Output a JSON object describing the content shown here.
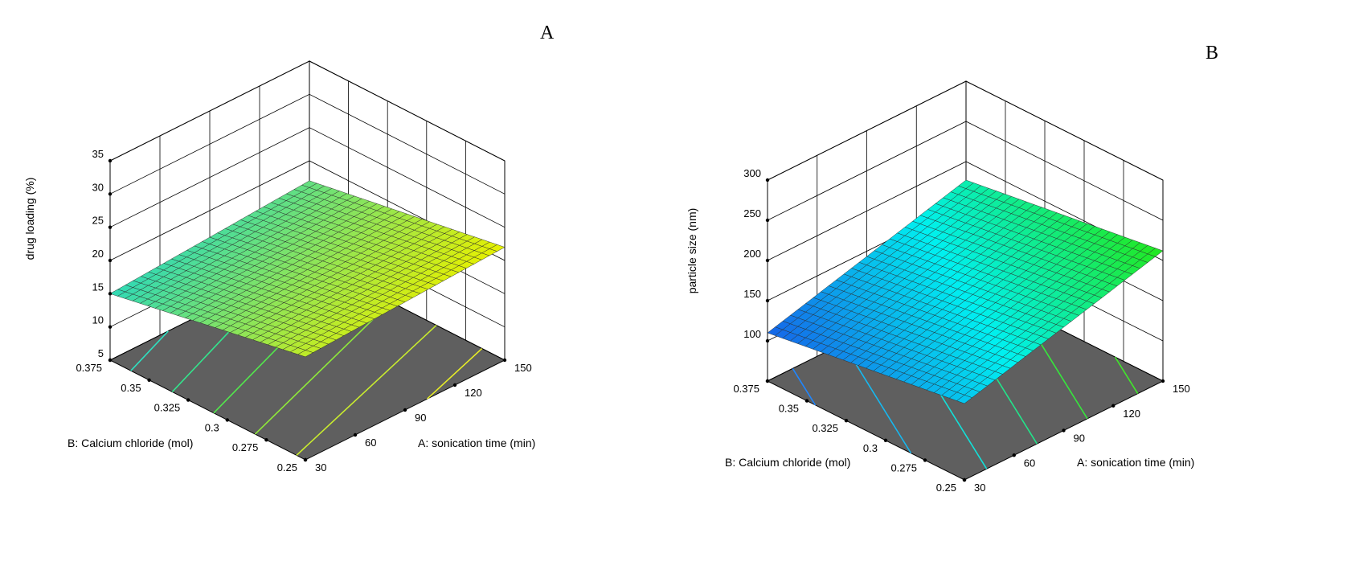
{
  "chart_data": [
    {
      "type": "surface3d",
      "panel_label": "A",
      "x": {
        "label": "A: sonication time (min)",
        "ticks": [
          30,
          60,
          90,
          120,
          150
        ],
        "range": [
          30,
          150
        ]
      },
      "y": {
        "label": "B: Calcium chloride (mol)",
        "ticks": [
          0.25,
          0.275,
          0.3,
          0.325,
          0.35,
          0.375
        ],
        "range": [
          0.25,
          0.375
        ]
      },
      "z": {
        "label": "drug loading (%)",
        "ticks": [
          5,
          10,
          15,
          20,
          25,
          30,
          35
        ],
        "range": [
          5,
          35
        ],
        "tick_labels_shown": [
          5,
          10,
          15,
          20,
          25,
          30,
          35
        ]
      },
      "surface_corners": {
        "x30_y0.25": 20.5,
        "x150_y0.25": 22.0,
        "x30_y0.375": 15.0,
        "x150_y0.375": 17.0
      },
      "colors": {
        "low": "#2fd9b6",
        "high": "#e6f000"
      },
      "contour_colors": [
        "#2ee0c0",
        "#33e58d",
        "#52e84c",
        "#8fe93a",
        "#c9ec2e",
        "#e8ee26"
      ]
    },
    {
      "type": "surface3d",
      "panel_label": "B",
      "x": {
        "label": "A: sonication time (min)",
        "ticks": [
          30,
          60,
          90,
          120,
          150
        ],
        "range": [
          30,
          150
        ]
      },
      "y": {
        "label": "B: Calcium chloride (mol)",
        "ticks": [
          0.25,
          0.275,
          0.3,
          0.325,
          0.35,
          0.375
        ],
        "range": [
          0.25,
          0.375
        ]
      },
      "z": {
        "label": "particle size (nm)",
        "ticks": [
          50,
          100,
          150,
          200,
          250,
          300
        ],
        "range": [
          50,
          300
        ],
        "tick_labels_shown": [
          100,
          150,
          200,
          250,
          300
        ]
      },
      "surface_corners": {
        "x30_y0.25": 145.0,
        "x150_y0.25": 212.0,
        "x30_y0.375": 110.0,
        "x150_y0.375": 177.0
      },
      "colors": {
        "low": "#1565e8",
        "mid": "#00f0f0",
        "high": "#22e81c"
      },
      "contour_colors": [
        "#1f86ff",
        "#16b8f0",
        "#12e0d8",
        "#22e48a",
        "#36e63c",
        "#40e82a"
      ]
    }
  ]
}
